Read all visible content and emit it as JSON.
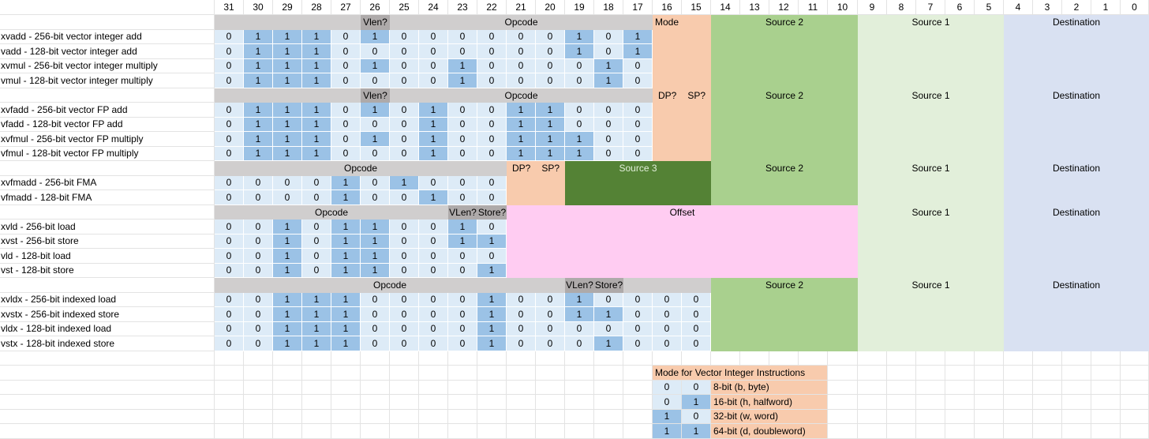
{
  "bit_positions": [
    "31",
    "30",
    "29",
    "28",
    "27",
    "26",
    "25",
    "24",
    "23",
    "22",
    "21",
    "20",
    "19",
    "18",
    "17",
    "16",
    "15",
    "14",
    "13",
    "12",
    "11",
    "10",
    "9",
    "8",
    "7",
    "6",
    "5",
    "4",
    "3",
    "2",
    "1",
    "0"
  ],
  "colors": {
    "light_blue": "#ddebf7",
    "mid_blue": "#9bc2e6",
    "gray": "#d0cece",
    "dark_gray": "#aeaaaa",
    "orange": "#f8cbad",
    "green": "#a9d08e",
    "dark_green": "#548235",
    "pale_green": "#e2efda",
    "pale_blue": "#d9e1f2",
    "pink": "#ffccf2"
  },
  "groups": [
    {
      "header_cells": [
        {
          "text": "",
          "from": 31,
          "to": 27
        },
        {
          "text": "Vlen?",
          "from": 26,
          "to": 26,
          "dark": true
        },
        {
          "text": "Opcode",
          "from": 25,
          "to": 17
        }
      ],
      "right_blocks": [
        {
          "from": 16,
          "to": 15,
          "color": "orange",
          "text": "Mode",
          "align": "left"
        },
        {
          "from": 14,
          "to": 10,
          "color": "green",
          "text": "Source 2"
        },
        {
          "from": 9,
          "to": 5,
          "color": "pale_green",
          "text": "Source 1"
        },
        {
          "from": 4,
          "to": 0,
          "color": "pale_blue",
          "text": "Destination"
        }
      ],
      "rows": [
        {
          "label": "xvadd - 256-bit vector integer add",
          "bits": [
            "0",
            "1",
            "1",
            "1",
            "0",
            "1",
            "0",
            "0",
            "0",
            "0",
            "0",
            "0",
            "1",
            "0",
            "1"
          ]
        },
        {
          "label": "vadd - 128-bit vector integer add",
          "bits": [
            "0",
            "1",
            "1",
            "1",
            "0",
            "0",
            "0",
            "0",
            "0",
            "0",
            "0",
            "0",
            "1",
            "0",
            "1"
          ]
        },
        {
          "label": "xvmul - 256-bit vector integer multiply",
          "bits": [
            "0",
            "1",
            "1",
            "1",
            "0",
            "1",
            "0",
            "0",
            "1",
            "0",
            "0",
            "0",
            "0",
            "1",
            "0"
          ]
        },
        {
          "label": "vmul - 128-bit vector integer multiply",
          "bits": [
            "0",
            "1",
            "1",
            "1",
            "0",
            "0",
            "0",
            "0",
            "1",
            "0",
            "0",
            "0",
            "0",
            "1",
            "0"
          ]
        }
      ]
    },
    {
      "header_cells": [
        {
          "text": "",
          "from": 31,
          "to": 27
        },
        {
          "text": "Vlen?",
          "from": 26,
          "to": 26,
          "dark": true
        },
        {
          "text": "Opcode",
          "from": 25,
          "to": 17
        }
      ],
      "right_blocks": [
        {
          "from": 16,
          "to": 15,
          "color": "orange",
          "text": "",
          "sublabels": [
            "DP?",
            "SP?"
          ]
        },
        {
          "from": 14,
          "to": 10,
          "color": "green",
          "text": "Source 2"
        },
        {
          "from": 9,
          "to": 5,
          "color": "pale_green",
          "text": "Source 1"
        },
        {
          "from": 4,
          "to": 0,
          "color": "pale_blue",
          "text": "Destination"
        }
      ],
      "rows": [
        {
          "label": "xvfadd - 256-bit vector FP add",
          "bits": [
            "0",
            "1",
            "1",
            "1",
            "0",
            "1",
            "0",
            "1",
            "0",
            "0",
            "1",
            "1",
            "0",
            "0",
            "0"
          ]
        },
        {
          "label": "vfadd - 128-bit vector FP add",
          "bits": [
            "0",
            "1",
            "1",
            "1",
            "0",
            "0",
            "0",
            "1",
            "0",
            "0",
            "1",
            "1",
            "0",
            "0",
            "0"
          ]
        },
        {
          "label": "xvfmul - 256-bit vector FP multiply",
          "bits": [
            "0",
            "1",
            "1",
            "1",
            "0",
            "1",
            "0",
            "1",
            "0",
            "0",
            "1",
            "1",
            "1",
            "0",
            "0"
          ]
        },
        {
          "label": "vfmul - 128-bit vector FP multiply",
          "bits": [
            "0",
            "1",
            "1",
            "1",
            "0",
            "0",
            "0",
            "1",
            "0",
            "0",
            "1",
            "1",
            "1",
            "0",
            "0"
          ]
        }
      ]
    },
    {
      "header_cells": [
        {
          "text": "Opcode",
          "from": 31,
          "to": 22
        }
      ],
      "right_blocks": [
        {
          "from": 21,
          "to": 20,
          "color": "orange",
          "text": "",
          "sublabels": [
            "DP?",
            "SP?"
          ]
        },
        {
          "from": 19,
          "to": 15,
          "color": "dark_green",
          "text": "Source 3",
          "light_text": true
        },
        {
          "from": 14,
          "to": 10,
          "color": "green",
          "text": "Source 2"
        },
        {
          "from": 9,
          "to": 5,
          "color": "pale_green",
          "text": "Source 1"
        },
        {
          "from": 4,
          "to": 0,
          "color": "pale_blue",
          "text": "Destination"
        }
      ],
      "rows": [
        {
          "label": "xvfmadd - 256-bit FMA",
          "bits": [
            "0",
            "0",
            "0",
            "0",
            "1",
            "0",
            "1",
            "0",
            "0",
            "0"
          ]
        },
        {
          "label": "vfmadd - 128-bit FMA",
          "bits": [
            "0",
            "0",
            "0",
            "0",
            "1",
            "0",
            "0",
            "1",
            "0",
            "0"
          ]
        }
      ]
    },
    {
      "header_cells": [
        {
          "text": "Opcode",
          "from": 31,
          "to": 24
        },
        {
          "text": "VLen?",
          "from": 23,
          "to": 23,
          "dark": true
        },
        {
          "text": "Store?",
          "from": 22,
          "to": 22,
          "dark": true
        }
      ],
      "right_blocks": [
        {
          "from": 21,
          "to": 10,
          "color": "pink",
          "text": "Offset"
        },
        {
          "from": 9,
          "to": 5,
          "color": "pale_green",
          "text": "Source 1"
        },
        {
          "from": 4,
          "to": 0,
          "color": "pale_blue",
          "text": "Destination"
        }
      ],
      "rows": [
        {
          "label": "xvld - 256-bit load",
          "bits": [
            "0",
            "0",
            "1",
            "0",
            "1",
            "1",
            "0",
            "0",
            "1",
            "0"
          ]
        },
        {
          "label": "xvst - 256-bit store",
          "bits": [
            "0",
            "0",
            "1",
            "0",
            "1",
            "1",
            "0",
            "0",
            "1",
            "1"
          ]
        },
        {
          "label": "vld - 128-bit load",
          "bits": [
            "0",
            "0",
            "1",
            "0",
            "1",
            "1",
            "0",
            "0",
            "0",
            "0"
          ]
        },
        {
          "label": "vst - 128-bit store",
          "bits": [
            "0",
            "0",
            "1",
            "0",
            "1",
            "1",
            "0",
            "0",
            "0",
            "1"
          ]
        }
      ]
    },
    {
      "header_cells": [
        {
          "text": "Opcode",
          "from": 31,
          "to": 20
        },
        {
          "text": "VLen?",
          "from": 19,
          "to": 19,
          "dark": true
        },
        {
          "text": "Store?",
          "from": 18,
          "to": 18,
          "dark": true
        },
        {
          "text": "",
          "from": 17,
          "to": 15
        }
      ],
      "right_blocks": [
        {
          "from": 14,
          "to": 10,
          "color": "green",
          "text": "Source 2"
        },
        {
          "from": 9,
          "to": 5,
          "color": "pale_green",
          "text": "Source 1"
        },
        {
          "from": 4,
          "to": 0,
          "color": "pale_blue",
          "text": "Destination"
        }
      ],
      "rows": [
        {
          "label": "xvldx - 256-bit indexed load",
          "bits": [
            "0",
            "0",
            "1",
            "1",
            "1",
            "0",
            "0",
            "0",
            "0",
            "1",
            "0",
            "0",
            "1",
            "0",
            "0",
            "0",
            "0"
          ]
        },
        {
          "label": "xvstx - 256-bit indexed store",
          "bits": [
            "0",
            "0",
            "1",
            "1",
            "1",
            "0",
            "0",
            "0",
            "0",
            "1",
            "0",
            "0",
            "1",
            "1",
            "0",
            "0",
            "0"
          ]
        },
        {
          "label": "vldx - 128-bit indexed load",
          "bits": [
            "0",
            "0",
            "1",
            "1",
            "1",
            "0",
            "0",
            "0",
            "0",
            "1",
            "0",
            "0",
            "0",
            "0",
            "0",
            "0",
            "0"
          ]
        },
        {
          "label": "vstx - 128-bit indexed store",
          "bits": [
            "0",
            "0",
            "1",
            "1",
            "1",
            "0",
            "0",
            "0",
            "0",
            "1",
            "0",
            "0",
            "0",
            "1",
            "0",
            "0",
            "0"
          ]
        }
      ]
    }
  ],
  "mode_table": {
    "title": "Mode for Vector Integer Instructions",
    "rows": [
      {
        "b16": "0",
        "b15": "0",
        "desc": "8-bit (b, byte)"
      },
      {
        "b16": "0",
        "b15": "1",
        "desc": "16-bit (h, halfword)"
      },
      {
        "b16": "1",
        "b15": "0",
        "desc": "32-bit (w, word)"
      },
      {
        "b16": "1",
        "b15": "1",
        "desc": "64-bit (d, doubleword)"
      }
    ]
  }
}
